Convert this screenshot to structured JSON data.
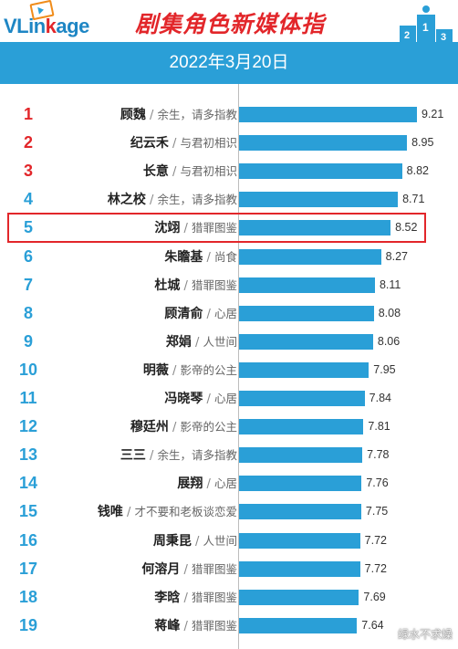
{
  "header": {
    "logo_text_a": "VLin",
    "logo_text_b": "k",
    "logo_text_c": "age",
    "title": "剧集角色新媒体指",
    "date": "2022年3月20日"
  },
  "chart_data": {
    "type": "bar",
    "orientation": "horizontal",
    "xlim": [
      0,
      9.21
    ],
    "value_labels": true,
    "highlight_rank": 5,
    "highlight_color": "#e2262a",
    "bar_color": "#2a9fd7",
    "rows": [
      {
        "rank": "1",
        "name": "顾魏",
        "drama": "余生，请多指教",
        "value": 9.21
      },
      {
        "rank": "2",
        "name": "纪云禾",
        "drama": "与君初相识",
        "value": 8.95
      },
      {
        "rank": "3",
        "name": "长意",
        "drama": "与君初相识",
        "value": 8.82
      },
      {
        "rank": "4",
        "name": "林之校",
        "drama": "余生，请多指教",
        "value": 8.71
      },
      {
        "rank": "5",
        "name": "沈翊",
        "drama": "猎罪图鉴",
        "value": 8.52
      },
      {
        "rank": "6",
        "name": "朱瞻基",
        "drama": "尚食",
        "value": 8.27
      },
      {
        "rank": "7",
        "name": "杜城",
        "drama": "猎罪图鉴",
        "value": 8.11
      },
      {
        "rank": "8",
        "name": "顾清俞",
        "drama": "心居",
        "value": 8.08
      },
      {
        "rank": "9",
        "name": "郑娟",
        "drama": "人世间",
        "value": 8.06
      },
      {
        "rank": "10",
        "name": "明薇",
        "drama": "影帝的公主",
        "value": 7.95
      },
      {
        "rank": "11",
        "name": "冯晓琴",
        "drama": "心居",
        "value": 7.84
      },
      {
        "rank": "12",
        "name": "穆廷州",
        "drama": "影帝的公主",
        "value": 7.81
      },
      {
        "rank": "13",
        "name": "三三",
        "drama": "余生，请多指教",
        "value": 7.78
      },
      {
        "rank": "14",
        "name": "展翔",
        "drama": "心居",
        "value": 7.76
      },
      {
        "rank": "15",
        "name": "钱唯",
        "drama": "才不要和老板谈恋爱",
        "value": 7.75
      },
      {
        "rank": "16",
        "name": "周秉昆",
        "drama": "人世间",
        "value": 7.72
      },
      {
        "rank": "17",
        "name": "何溶月",
        "drama": "猎罪图鉴",
        "value": 7.72
      },
      {
        "rank": "18",
        "name": "李晗",
        "drama": "猎罪图鉴",
        "value": 7.69
      },
      {
        "rank": "19",
        "name": "蒋峰",
        "drama": "猎罪图鉴",
        "value": 7.64
      }
    ],
    "rank_colors": {
      "top": "#e2262a",
      "rest": "#2a9fd7"
    }
  },
  "watermark": "绿水不求燥"
}
